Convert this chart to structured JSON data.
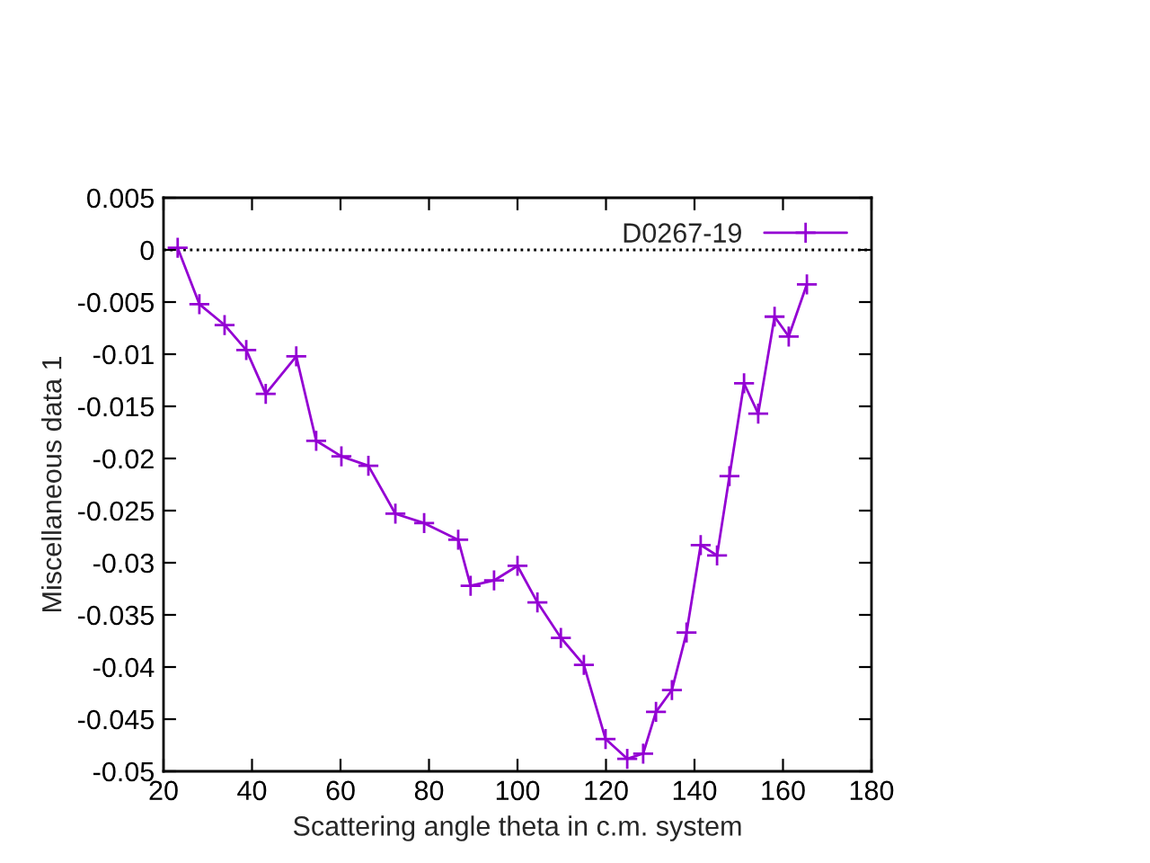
{
  "chart_data": {
    "type": "line",
    "xlabel": "Scattering angle theta in c.m. system",
    "ylabel": "Miscellaneous data 1",
    "xlim": [
      20,
      180
    ],
    "xticks": [
      20,
      40,
      60,
      80,
      100,
      120,
      140,
      160,
      180
    ],
    "ylim": [
      -0.05,
      0.005
    ],
    "yticks": [
      -0.05,
      -0.045,
      -0.04,
      -0.035,
      -0.03,
      -0.025,
      -0.02,
      -0.015,
      -0.01,
      -0.005,
      0,
      0.005
    ],
    "marker": "cross",
    "legend": "top right",
    "grid": false,
    "ref_lines": [
      {
        "axis": "y",
        "value": 0,
        "line_style": "dotted",
        "color": "#000000"
      }
    ],
    "series": [
      {
        "name": "D0267-19",
        "color": "#9400d3",
        "x": [
          23.2,
          28.1,
          33.8,
          38.7,
          43.1,
          50.0,
          54.5,
          60.2,
          66.3,
          72.4,
          78.9,
          86.6,
          89.4,
          94.7,
          100.0,
          104.5,
          109.8,
          115.0,
          119.9,
          124.8,
          128.4,
          131.3,
          134.9,
          138.2,
          141.4,
          145.1,
          147.9,
          151.2,
          154.4,
          158.1,
          161.3,
          165.4
        ],
        "values": [
          0.0002,
          -0.0052,
          -0.0072,
          -0.0096,
          -0.0138,
          -0.0102,
          -0.0183,
          -0.0198,
          -0.0207,
          -0.0253,
          -0.0262,
          -0.0278,
          -0.0322,
          -0.0317,
          -0.0303,
          -0.0338,
          -0.0372,
          -0.0398,
          -0.0469,
          -0.0488,
          -0.0483,
          -0.0443,
          -0.0422,
          -0.0367,
          -0.0283,
          -0.0293,
          -0.0217,
          -0.0128,
          -0.0157,
          -0.0064,
          -0.0083,
          -0.0033
        ]
      }
    ]
  }
}
